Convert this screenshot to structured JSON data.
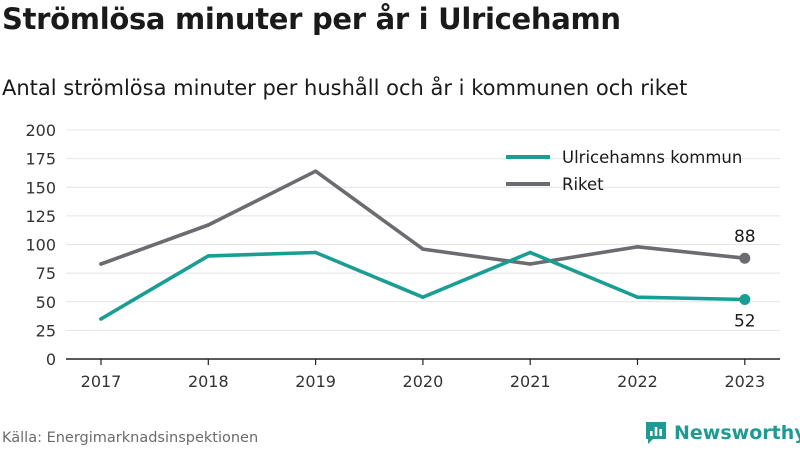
{
  "header": {
    "title": "Strömlösa minuter per år i Ulricehamn",
    "subtitle": "Antal strömlösa minuter per hushåll och år i kommunen och riket"
  },
  "footer": {
    "source": "Källa: Energimarknadsinspektionen",
    "brand": "Newsworthy"
  },
  "icons": {
    "brand_logo": "newsworthy-logo-icon"
  },
  "colors": {
    "ulricehamn": "#1a9e94",
    "riket": "#6b6b70",
    "brand": "#1f9a92",
    "grid": "#e4e4e4",
    "axis": "#222222"
  },
  "chart_data": {
    "type": "line",
    "categories": [
      "2017",
      "2018",
      "2019",
      "2020",
      "2021",
      "2022",
      "2023"
    ],
    "series": [
      {
        "name": "Ulricehamns kommun",
        "values": [
          35,
          90,
          93,
          54,
          93,
          54,
          52
        ],
        "end_label": "52"
      },
      {
        "name": "Riket",
        "values": [
          83,
          117,
          164,
          96,
          83,
          98,
          88
        ],
        "end_label": "88"
      }
    ],
    "yticks": [
      "0",
      "25",
      "50",
      "75",
      "100",
      "125",
      "150",
      "175",
      "200"
    ],
    "ylim": [
      0,
      200
    ],
    "grid": true,
    "legend": "top-right"
  }
}
